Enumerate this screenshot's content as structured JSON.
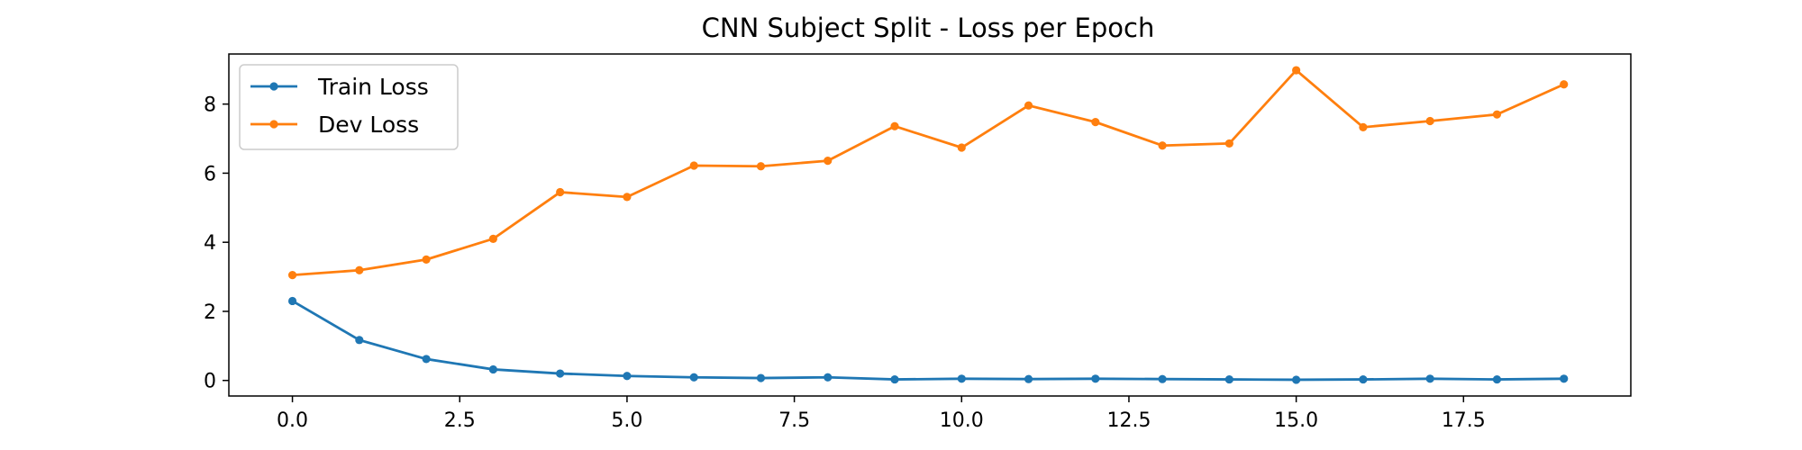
{
  "chart_data": {
    "type": "line",
    "title": "CNN Subject Split -  Loss per Epoch",
    "xlabel": "",
    "ylabel": "",
    "xlim": [
      -0.95,
      20.0
    ],
    "ylim": [
      -0.45,
      9.45
    ],
    "xticks": [
      0.0,
      2.5,
      5.0,
      7.5,
      10.0,
      12.5,
      15.0,
      17.5
    ],
    "xtick_labels": [
      "0.0",
      "2.5",
      "5.0",
      "7.5",
      "10.0",
      "12.5",
      "15.0",
      "17.5"
    ],
    "yticks": [
      0,
      2,
      4,
      6,
      8
    ],
    "ytick_labels": [
      "0",
      "2",
      "4",
      "6",
      "8"
    ],
    "grid": false,
    "legend_position": "top-left",
    "x": [
      0,
      1,
      2,
      3,
      4,
      5,
      6,
      7,
      8,
      9,
      10,
      11,
      12,
      13,
      14,
      15,
      16,
      17,
      18,
      19
    ],
    "series": [
      {
        "name": "Train Loss",
        "color": "#1f77b4",
        "values": [
          2.3,
          1.17,
          0.62,
          0.32,
          0.2,
          0.13,
          0.09,
          0.07,
          0.09,
          0.03,
          0.05,
          0.04,
          0.05,
          0.04,
          0.03,
          0.02,
          0.03,
          0.05,
          0.03,
          0.05
        ]
      },
      {
        "name": "Dev Loss",
        "color": "#ff7f0e",
        "values": [
          3.05,
          3.19,
          3.5,
          4.1,
          5.45,
          5.31,
          6.22,
          6.2,
          6.36,
          7.36,
          6.74,
          7.96,
          7.48,
          6.8,
          6.86,
          8.98,
          7.33,
          7.51,
          7.7,
          8.57
        ]
      }
    ]
  }
}
